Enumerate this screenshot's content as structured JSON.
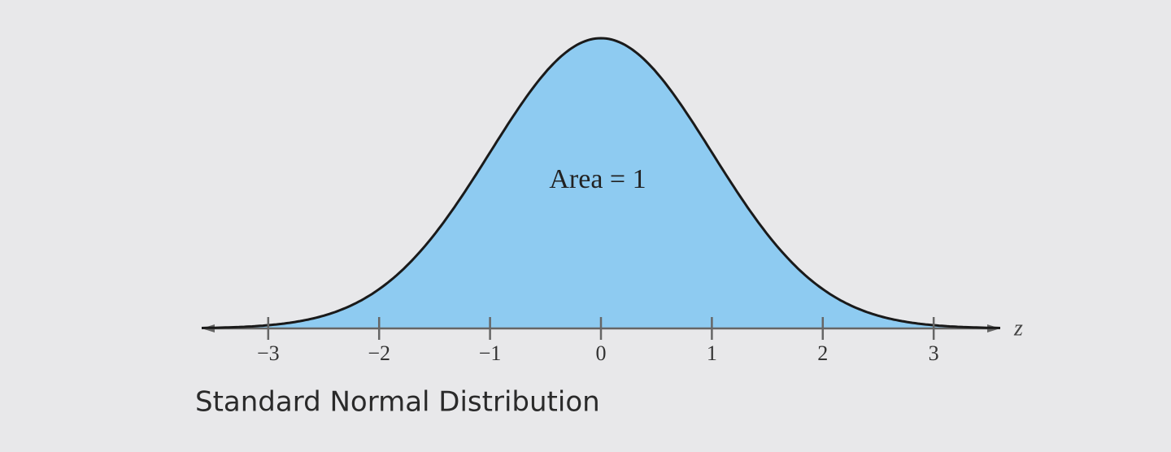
{
  "chart_data": {
    "type": "normal-curve",
    "xlabel": "z",
    "annotation": "Area = 1",
    "caption": "Standard Normal Distribution",
    "xlim": [
      -3.6,
      3.6
    ],
    "xticks": [
      {
        "value": -3,
        "label": "−3"
      },
      {
        "value": -2,
        "label": "−2"
      },
      {
        "value": -1,
        "label": "−1"
      },
      0,
      1,
      2,
      3
    ],
    "fill_color": "#8ecbf1",
    "line_color": "#1a1a1a"
  }
}
